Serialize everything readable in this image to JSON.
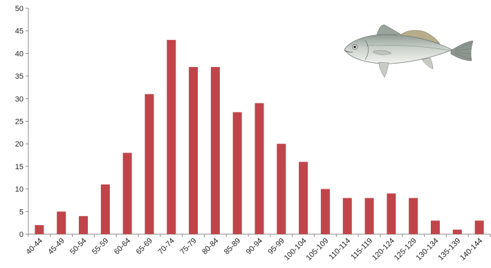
{
  "chart_data": {
    "type": "bar",
    "title": "",
    "xlabel": "",
    "ylabel": "",
    "categories": [
      "40-44",
      "45-49",
      "50-54",
      "55-59",
      "60-64",
      "65-69",
      "70-74",
      "75-79",
      "80-84",
      "85-89",
      "90-94",
      "95-99",
      "100-104",
      "105-109",
      "110-114",
      "115-119",
      "120-124",
      "125-129",
      "130-134",
      "135-139",
      "140-144"
    ],
    "values": [
      2,
      5,
      4,
      11,
      18,
      31,
      43,
      37,
      37,
      27,
      29,
      20,
      16,
      10,
      8,
      8,
      9,
      8,
      3,
      1,
      3
    ],
    "ylim": [
      0,
      50
    ],
    "yticks": [
      0,
      5,
      10,
      15,
      20,
      25,
      30,
      35,
      40,
      45,
      50
    ],
    "grid": false,
    "legend": "none",
    "bar_color": "#c0454a",
    "illustration": "fish-icon"
  }
}
